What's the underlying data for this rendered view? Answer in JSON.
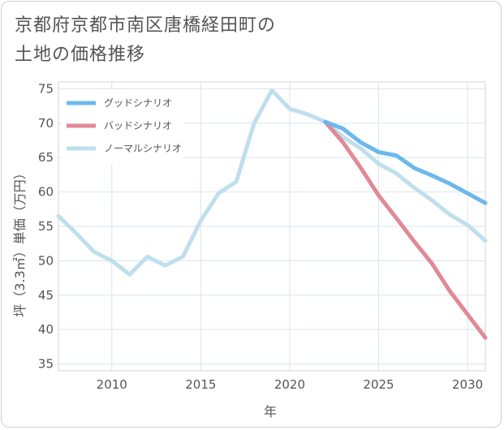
{
  "title_line1": "京都府京都市南区唐橋経田町の",
  "title_line2": "土地の価格推移",
  "chart_data": {
    "type": "line",
    "xlabel": "年",
    "ylabel": "坪（3.3㎡）単価（万円）",
    "xlim": [
      2007,
      2031
    ],
    "ylim": [
      34,
      76
    ],
    "x_ticks": [
      2010,
      2015,
      2020,
      2025,
      2030
    ],
    "y_ticks": [
      35,
      40,
      45,
      50,
      55,
      60,
      65,
      70,
      75
    ],
    "grid": true,
    "legend_position": "top-left",
    "series": [
      {
        "name": "グッドシナリオ",
        "color": "#6bb8ec",
        "x": [
          2022,
          2023,
          2024,
          2025,
          2026,
          2027,
          2028,
          2029,
          2030,
          2031
        ],
        "y": [
          70.2,
          69.2,
          67.2,
          65.8,
          65.3,
          63.5,
          62.4,
          61.2,
          59.8,
          58.4
        ]
      },
      {
        "name": "バッドシナリオ",
        "color": "#e08a96",
        "x": [
          2022,
          2023,
          2024,
          2025,
          2026,
          2027,
          2028,
          2029,
          2030,
          2031
        ],
        "y": [
          70.2,
          67.2,
          63.5,
          59.5,
          56.2,
          52.8,
          49.6,
          45.6,
          42.2,
          38.8
        ]
      },
      {
        "name": "ノーマルシナリオ",
        "color": "#bfdfee",
        "x": [
          2007,
          2008,
          2009,
          2010,
          2011,
          2012,
          2013,
          2014,
          2015,
          2016,
          2017,
          2018,
          2019,
          2020,
          2021,
          2022,
          2023,
          2024,
          2025,
          2026,
          2027,
          2028,
          2029,
          2030,
          2031
        ],
        "y": [
          56.5,
          54.0,
          51.3,
          50.0,
          48.0,
          50.6,
          49.3,
          50.6,
          55.8,
          59.8,
          61.5,
          70.0,
          74.8,
          72.1,
          71.3,
          70.2,
          68.0,
          66.3,
          64.1,
          62.7,
          60.6,
          58.8,
          56.7,
          55.2,
          52.9
        ]
      }
    ]
  }
}
